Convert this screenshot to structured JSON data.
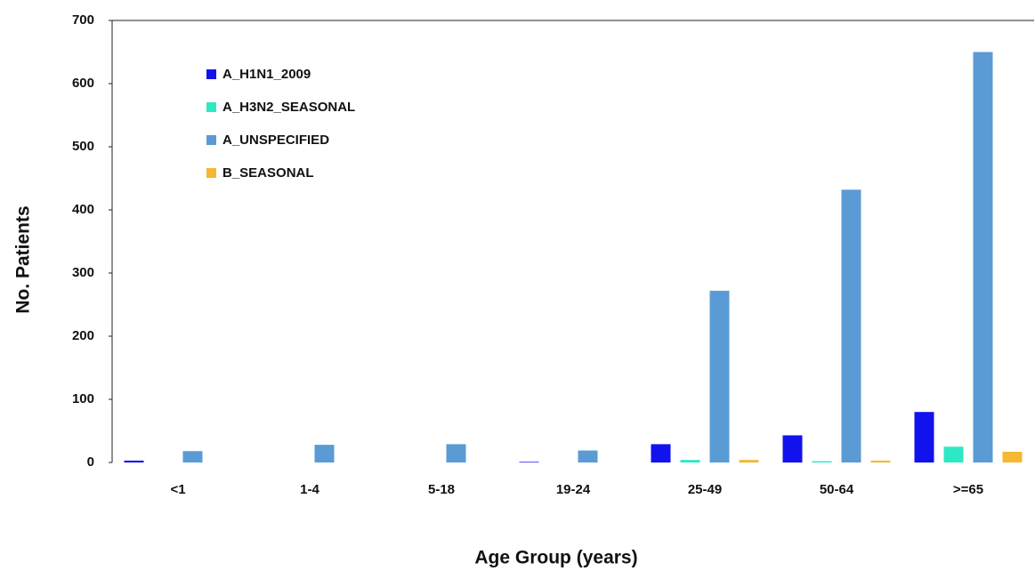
{
  "chart_data": {
    "type": "bar",
    "x_label": "Age Group (years)",
    "y_label": "No. Patients",
    "categories": [
      "<1",
      "1-4",
      "5-18",
      "19-24",
      "25-49",
      "50-64",
      ">=65"
    ],
    "series": [
      {
        "name": "A_H1N1_2009",
        "color": "#1212ee",
        "values": [
          3,
          0,
          0,
          1,
          29,
          43,
          80
        ]
      },
      {
        "name": "A_H3N2_SEASONAL",
        "color": "#2ee8c4",
        "values": [
          0,
          0,
          0,
          0,
          4,
          2,
          25
        ]
      },
      {
        "name": "A_UNSPECIFIED",
        "color": "#5b9bd5",
        "values": [
          18,
          28,
          29,
          19,
          272,
          432,
          650
        ]
      },
      {
        "name": "B_SEASONAL",
        "color": "#f4b832",
        "values": [
          0,
          0,
          0,
          0,
          4,
          3,
          17
        ]
      }
    ],
    "ylim": [
      0,
      700
    ],
    "yticks": [
      0,
      100,
      200,
      300,
      400,
      500,
      600,
      700
    ]
  }
}
